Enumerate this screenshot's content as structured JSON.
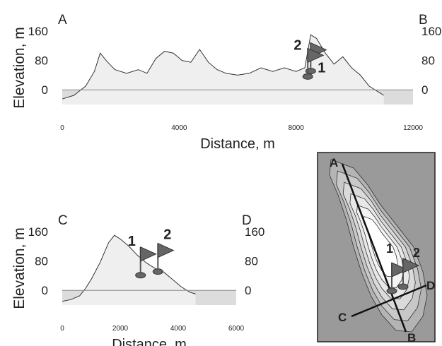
{
  "chart_data": [
    {
      "type": "area",
      "profile_start": "A",
      "profile_end": "B",
      "xlabel": "Distance, m",
      "ylabel": "Elevation, m",
      "xlim": [
        0,
        12000
      ],
      "ylim": [
        -40,
        160
      ],
      "x_ticks": [
        "0",
        "4000",
        "8000",
        "12000"
      ],
      "y_ticks": [
        "160",
        "80",
        "0"
      ],
      "sea_level": 0,
      "markers": [
        {
          "label": "2",
          "x": 8500,
          "y": 55
        },
        {
          "label": "1",
          "x": 8400,
          "y": 40
        }
      ],
      "x": [
        0,
        400,
        800,
        1100,
        1300,
        1500,
        1800,
        2200,
        2600,
        2900,
        3200,
        3500,
        3800,
        4100,
        4400,
        4700,
        5000,
        5300,
        5600,
        6000,
        6400,
        6800,
        7200,
        7600,
        8000,
        8300,
        8500,
        8700,
        9000,
        9300,
        9600,
        9900,
        10200,
        10500,
        10800,
        11000
      ],
      "y": [
        -25,
        -15,
        10,
        50,
        100,
        80,
        55,
        45,
        55,
        45,
        85,
        105,
        100,
        80,
        75,
        110,
        75,
        55,
        45,
        40,
        45,
        60,
        50,
        60,
        50,
        60,
        150,
        140,
        100,
        70,
        90,
        60,
        40,
        10,
        -5,
        -15
      ]
    },
    {
      "type": "area",
      "profile_start": "C",
      "profile_end": "D",
      "xlabel": "Distance, m",
      "ylabel": "Elevation, m",
      "xlim": [
        0,
        6000
      ],
      "ylim": [
        -40,
        160
      ],
      "x_ticks": [
        "0",
        "2000",
        "4000",
        "6000"
      ],
      "y_ticks": [
        "160",
        "80",
        "0"
      ],
      "sea_level": 0,
      "markers": [
        {
          "label": "1",
          "x": 2700,
          "y": 45
        },
        {
          "label": "2",
          "x": 3300,
          "y": 55
        }
      ],
      "x": [
        0,
        300,
        600,
        800,
        1000,
        1300,
        1600,
        1800,
        2000,
        2300,
        2600,
        2900,
        3200,
        3500,
        3800,
        4100,
        4400,
        4600
      ],
      "y": [
        -30,
        -25,
        -15,
        5,
        30,
        75,
        130,
        150,
        140,
        120,
        95,
        75,
        60,
        50,
        30,
        10,
        -5,
        -10
      ]
    }
  ],
  "map": {
    "endpoints": [
      "A",
      "B",
      "C",
      "D"
    ],
    "flags": [
      "1",
      "2"
    ]
  }
}
